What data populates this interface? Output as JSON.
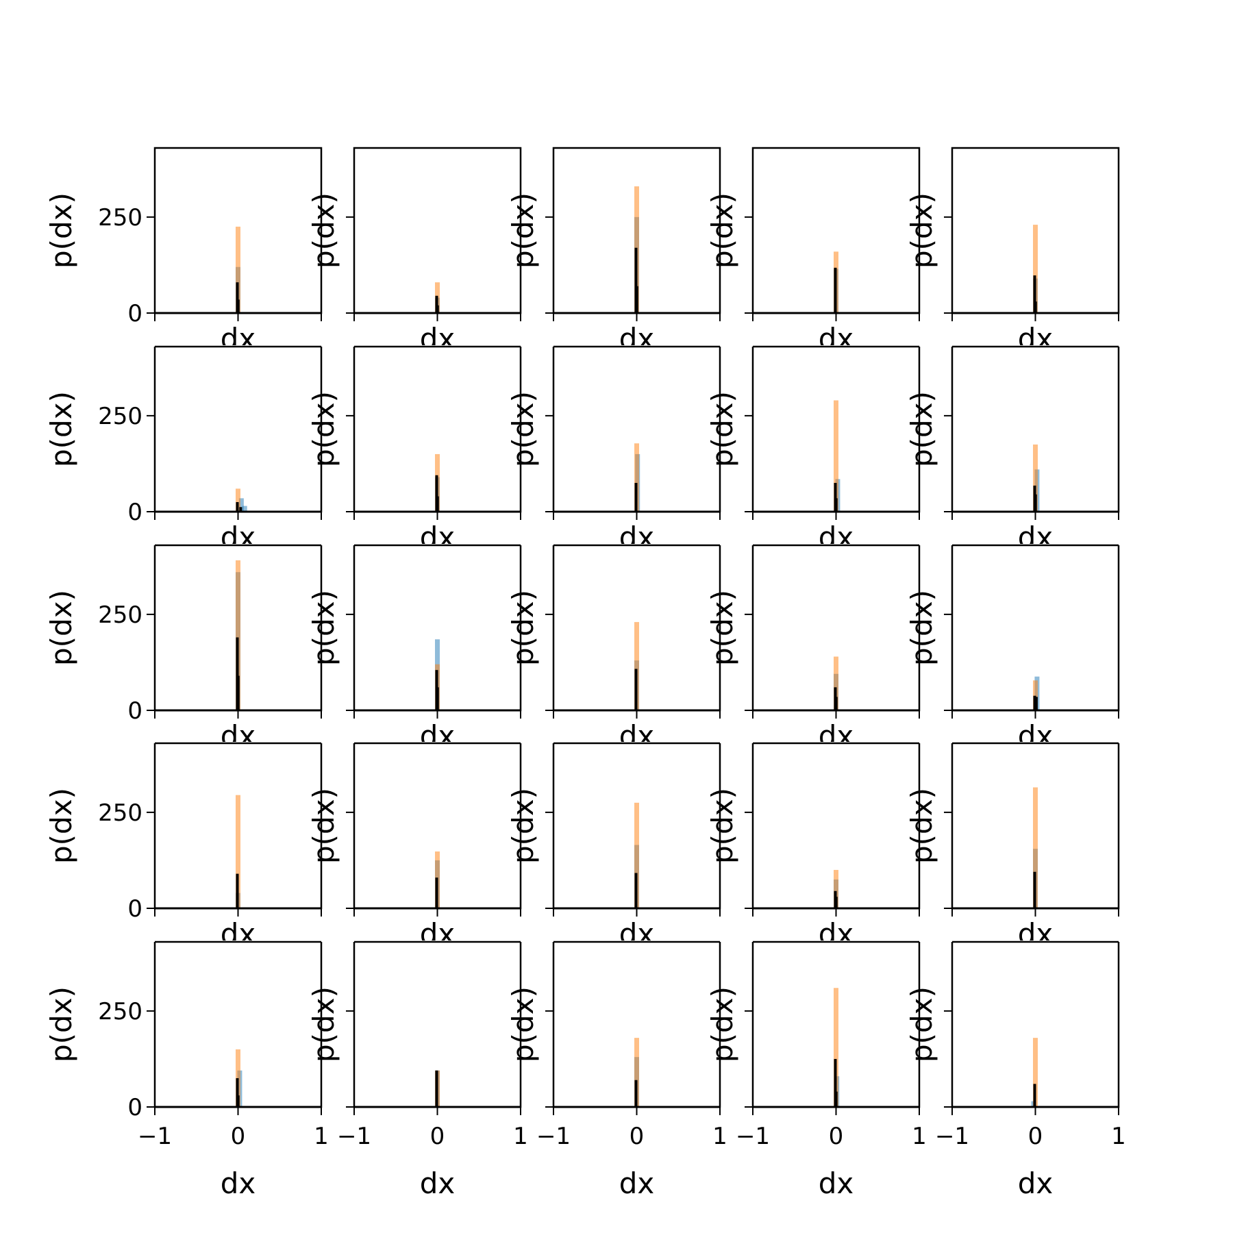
{
  "colors": {
    "series_a": "#1f77b4",
    "series_b": "#ff7f0e",
    "series_c": "#000000"
  },
  "chart_data": {
    "type": "bar",
    "layout": "5x5 grid of small-multiple histograms",
    "xlabel": "dx",
    "ylabel": "p(dx)",
    "xlim": [
      -1,
      1
    ],
    "ylim": [
      0,
      430
    ],
    "x_ticks": [
      -1,
      0,
      1
    ],
    "x_tick_labels": [
      "−1",
      "0",
      "1"
    ],
    "y_ticks": [
      0,
      250
    ],
    "y_tick_labels": [
      "0",
      "250"
    ],
    "grid": false,
    "legend": "none",
    "series_style": {
      "series_a": "light blue, semi-transparent bars",
      "series_b": "light orange, semi-transparent bars",
      "series_c": "black bars, drawn on top"
    },
    "panels": [
      {
        "row": 1,
        "col": 1,
        "a": [
          {
            "x": 0.0,
            "y": 120
          }
        ],
        "b": [
          {
            "x": 0.0,
            "y": 225
          }
        ],
        "c": [
          {
            "x": 0.0,
            "y": 80
          },
          {
            "x": 0.01,
            "y": 35
          }
        ]
      },
      {
        "row": 1,
        "col": 2,
        "a": [
          {
            "x": 0.0,
            "y": 40
          }
        ],
        "b": [
          {
            "x": 0.0,
            "y": 80
          }
        ],
        "c": [
          {
            "x": 0.0,
            "y": 45
          },
          {
            "x": 0.01,
            "y": 20
          }
        ]
      },
      {
        "row": 1,
        "col": 3,
        "a": [
          {
            "x": 0.0,
            "y": 250
          }
        ],
        "b": [
          {
            "x": 0.0,
            "y": 330
          }
        ],
        "c": [
          {
            "x": 0.0,
            "y": 170
          },
          {
            "x": 0.01,
            "y": 70
          }
        ]
      },
      {
        "row": 1,
        "col": 4,
        "a": [
          {
            "x": 0.0,
            "y": 115
          }
        ],
        "b": [
          {
            "x": 0.0,
            "y": 160
          }
        ],
        "c": [
          {
            "x": 0.0,
            "y": 118
          }
        ]
      },
      {
        "row": 1,
        "col": 5,
        "a": [
          {
            "x": 0.0,
            "y": 90
          }
        ],
        "b": [
          {
            "x": 0.0,
            "y": 230
          }
        ],
        "c": [
          {
            "x": 0.0,
            "y": 98
          },
          {
            "x": 0.01,
            "y": 30
          }
        ]
      },
      {
        "row": 2,
        "col": 1,
        "a": [
          {
            "x": 0.04,
            "y": 35
          },
          {
            "x": 0.08,
            "y": 15
          }
        ],
        "b": [
          {
            "x": 0.0,
            "y": 60
          }
        ],
        "c": [
          {
            "x": 0.0,
            "y": 25
          },
          {
            "x": 0.04,
            "y": 12
          }
        ]
      },
      {
        "row": 2,
        "col": 2,
        "a": [
          {
            "x": 0.0,
            "y": 90
          }
        ],
        "b": [
          {
            "x": 0.0,
            "y": 150
          }
        ],
        "c": [
          {
            "x": 0.0,
            "y": 95
          },
          {
            "x": 0.01,
            "y": 40
          }
        ]
      },
      {
        "row": 2,
        "col": 3,
        "a": [
          {
            "x": 0.01,
            "y": 150
          }
        ],
        "b": [
          {
            "x": 0.0,
            "y": 178
          }
        ],
        "c": [
          {
            "x": 0.0,
            "y": 75
          }
        ]
      },
      {
        "row": 2,
        "col": 4,
        "a": [
          {
            "x": 0.02,
            "y": 85
          }
        ],
        "b": [
          {
            "x": 0.0,
            "y": 290
          }
        ],
        "c": [
          {
            "x": 0.0,
            "y": 75
          },
          {
            "x": 0.01,
            "y": 35
          }
        ]
      },
      {
        "row": 2,
        "col": 5,
        "a": [
          {
            "x": 0.02,
            "y": 110
          }
        ],
        "b": [
          {
            "x": 0.0,
            "y": 175
          }
        ],
        "c": [
          {
            "x": 0.0,
            "y": 68
          },
          {
            "x": 0.01,
            "y": 45
          }
        ]
      },
      {
        "row": 3,
        "col": 1,
        "a": [
          {
            "x": 0.0,
            "y": 360
          }
        ],
        "b": [
          {
            "x": 0.0,
            "y": 405
          }
        ],
        "c": [
          {
            "x": 0.0,
            "y": 190
          },
          {
            "x": 0.01,
            "y": 90
          }
        ]
      },
      {
        "row": 3,
        "col": 2,
        "a": [
          {
            "x": 0.0,
            "y": 185
          }
        ],
        "b": [
          {
            "x": 0.0,
            "y": 120
          }
        ],
        "c": [
          {
            "x": 0.0,
            "y": 105
          },
          {
            "x": 0.01,
            "y": 60
          }
        ]
      },
      {
        "row": 3,
        "col": 3,
        "a": [
          {
            "x": 0.0,
            "y": 130
          }
        ],
        "b": [
          {
            "x": 0.0,
            "y": 230
          }
        ],
        "c": [
          {
            "x": 0.0,
            "y": 108
          }
        ]
      },
      {
        "row": 3,
        "col": 4,
        "a": [
          {
            "x": 0.0,
            "y": 95
          }
        ],
        "b": [
          {
            "x": 0.0,
            "y": 140
          }
        ],
        "c": [
          {
            "x": 0.0,
            "y": 60
          },
          {
            "x": 0.01,
            "y": 35
          }
        ]
      },
      {
        "row": 3,
        "col": 5,
        "a": [
          {
            "x": 0.02,
            "y": 88
          }
        ],
        "b": [
          {
            "x": 0.0,
            "y": 78
          }
        ],
        "c": [
          {
            "x": 0.0,
            "y": 38
          },
          {
            "x": 0.02,
            "y": 35
          }
        ]
      },
      {
        "row": 4,
        "col": 1,
        "a": [
          {
            "x": 0.0,
            "y": 40
          }
        ],
        "b": [
          {
            "x": 0.0,
            "y": 295
          }
        ],
        "c": [
          {
            "x": 0.0,
            "y": 90
          }
        ]
      },
      {
        "row": 4,
        "col": 2,
        "a": [
          {
            "x": 0.0,
            "y": 125
          }
        ],
        "b": [
          {
            "x": 0.0,
            "y": 148
          }
        ],
        "c": [
          {
            "x": 0.0,
            "y": 80
          }
        ]
      },
      {
        "row": 4,
        "col": 3,
        "a": [
          {
            "x": 0.0,
            "y": 165
          }
        ],
        "b": [
          {
            "x": 0.0,
            "y": 275
          }
        ],
        "c": [
          {
            "x": 0.0,
            "y": 92
          }
        ]
      },
      {
        "row": 4,
        "col": 4,
        "a": [
          {
            "x": 0.0,
            "y": 75
          }
        ],
        "b": [
          {
            "x": 0.0,
            "y": 100
          }
        ],
        "c": [
          {
            "x": 0.0,
            "y": 45
          },
          {
            "x": 0.01,
            "y": 30
          }
        ]
      },
      {
        "row": 4,
        "col": 5,
        "a": [
          {
            "x": 0.0,
            "y": 155
          }
        ],
        "b": [
          {
            "x": 0.0,
            "y": 315
          }
        ],
        "c": [
          {
            "x": 0.0,
            "y": 95
          }
        ]
      },
      {
        "row": 5,
        "col": 1,
        "a": [
          {
            "x": 0.02,
            "y": 95
          }
        ],
        "b": [
          {
            "x": 0.0,
            "y": 150
          }
        ],
        "c": [
          {
            "x": 0.0,
            "y": 75
          },
          {
            "x": 0.01,
            "y": 30
          }
        ]
      },
      {
        "row": 5,
        "col": 2,
        "a": [
          {
            "x": 0.0,
            "y": 95
          }
        ],
        "b": [
          {
            "x": 0.0,
            "y": 95
          }
        ],
        "c": [
          {
            "x": 0.0,
            "y": 95
          }
        ]
      },
      {
        "row": 5,
        "col": 3,
        "a": [
          {
            "x": 0.0,
            "y": 130
          }
        ],
        "b": [
          {
            "x": 0.0,
            "y": 180
          }
        ],
        "c": [
          {
            "x": 0.0,
            "y": 70
          }
        ]
      },
      {
        "row": 5,
        "col": 4,
        "a": [
          {
            "x": 0.01,
            "y": 80
          }
        ],
        "b": [
          {
            "x": 0.0,
            "y": 310
          }
        ],
        "c": [
          {
            "x": 0.0,
            "y": 125
          },
          {
            "x": 0.01,
            "y": 40
          }
        ]
      },
      {
        "row": 5,
        "col": 5,
        "a": [
          {
            "x": -0.02,
            "y": 15
          }
        ],
        "b": [
          {
            "x": 0.0,
            "y": 180
          }
        ],
        "c": [
          {
            "x": 0.0,
            "y": 60
          }
        ]
      }
    ]
  }
}
